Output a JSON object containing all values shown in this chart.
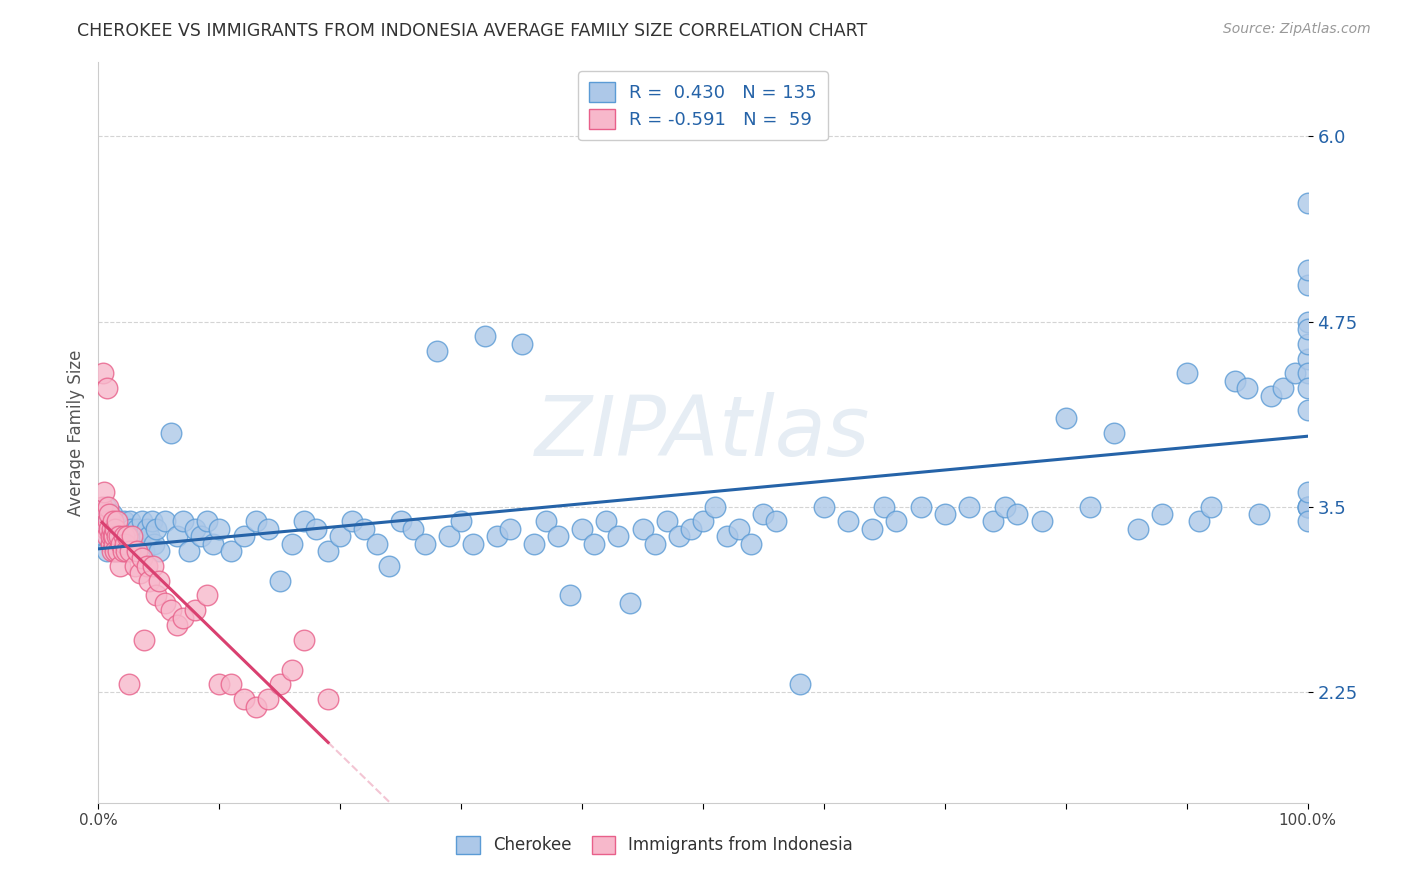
{
  "title": "CHEROKEE VS IMMIGRANTS FROM INDONESIA AVERAGE FAMILY SIZE CORRELATION CHART",
  "source_text": "Source: ZipAtlas.com",
  "ylabel": "Average Family Size",
  "watermark": "ZIPAtlas",
  "xlim": [
    0,
    1.0
  ],
  "ylim": [
    1.5,
    6.5
  ],
  "yticks": [
    2.25,
    3.5,
    4.75,
    6.0
  ],
  "xticks": [
    0.0,
    0.1,
    0.2,
    0.3,
    0.4,
    0.5,
    0.6,
    0.7,
    0.8,
    0.9,
    1.0
  ],
  "xtick_labels": [
    "0.0%",
    "",
    "",
    "",
    "",
    "",
    "",
    "",
    "",
    "",
    "100.0%"
  ],
  "blue_R": 0.43,
  "blue_N": 135,
  "pink_R": -0.591,
  "pink_N": 59,
  "blue_color": "#adc8e8",
  "blue_edge": "#5b9bd5",
  "pink_color": "#f7b8cb",
  "pink_edge": "#e8608a",
  "blue_line_color": "#2563a8",
  "pink_line_color": "#d94070",
  "background_color": "#ffffff",
  "grid_color": "#d0d0d0",
  "title_color": "#333333",
  "tick_label_color": "#2563a8",
  "blue_scatter_x": [
    0.005,
    0.006,
    0.007,
    0.008,
    0.009,
    0.01,
    0.011,
    0.012,
    0.013,
    0.014,
    0.015,
    0.016,
    0.017,
    0.018,
    0.019,
    0.02,
    0.021,
    0.022,
    0.023,
    0.024,
    0.025,
    0.026,
    0.027,
    0.028,
    0.03,
    0.032,
    0.034,
    0.036,
    0.038,
    0.04,
    0.042,
    0.044,
    0.046,
    0.048,
    0.05,
    0.055,
    0.06,
    0.065,
    0.07,
    0.075,
    0.08,
    0.085,
    0.09,
    0.095,
    0.1,
    0.11,
    0.12,
    0.13,
    0.14,
    0.15,
    0.16,
    0.17,
    0.18,
    0.19,
    0.2,
    0.21,
    0.22,
    0.23,
    0.24,
    0.25,
    0.26,
    0.27,
    0.28,
    0.29,
    0.3,
    0.31,
    0.32,
    0.33,
    0.34,
    0.35,
    0.36,
    0.37,
    0.38,
    0.39,
    0.4,
    0.41,
    0.42,
    0.43,
    0.44,
    0.45,
    0.46,
    0.47,
    0.48,
    0.49,
    0.5,
    0.51,
    0.52,
    0.53,
    0.54,
    0.55,
    0.56,
    0.58,
    0.6,
    0.62,
    0.64,
    0.65,
    0.66,
    0.68,
    0.7,
    0.72,
    0.74,
    0.75,
    0.76,
    0.78,
    0.8,
    0.82,
    0.84,
    0.86,
    0.88,
    0.9,
    0.91,
    0.92,
    0.94,
    0.95,
    0.96,
    0.97,
    0.98,
    0.99,
    1.0,
    1.0,
    1.0,
    1.0,
    1.0,
    1.0,
    1.0,
    1.0,
    1.0,
    1.0,
    1.0,
    1.0,
    1.0,
    1.0,
    1.0
  ],
  "blue_scatter_y": [
    3.3,
    3.5,
    3.2,
    3.4,
    3.35,
    3.25,
    3.45,
    3.3,
    3.35,
    3.2,
    3.3,
    3.4,
    3.25,
    3.35,
    3.2,
    3.3,
    3.4,
    3.35,
    3.25,
    3.3,
    3.2,
    3.4,
    3.35,
    3.25,
    3.3,
    3.35,
    3.25,
    3.4,
    3.2,
    3.35,
    3.3,
    3.4,
    3.25,
    3.35,
    3.2,
    3.4,
    4.0,
    3.3,
    3.4,
    3.2,
    3.35,
    3.3,
    3.4,
    3.25,
    3.35,
    3.2,
    3.3,
    3.4,
    3.35,
    3.0,
    3.25,
    3.4,
    3.35,
    3.2,
    3.3,
    3.4,
    3.35,
    3.25,
    3.1,
    3.4,
    3.35,
    3.25,
    4.55,
    3.3,
    3.4,
    3.25,
    4.65,
    3.3,
    3.35,
    4.6,
    3.25,
    3.4,
    3.3,
    2.9,
    3.35,
    3.25,
    3.4,
    3.3,
    2.85,
    3.35,
    3.25,
    3.4,
    3.3,
    3.35,
    3.4,
    3.5,
    3.3,
    3.35,
    3.25,
    3.45,
    3.4,
    2.3,
    3.5,
    3.4,
    3.35,
    3.5,
    3.4,
    3.5,
    3.45,
    3.5,
    3.4,
    3.5,
    3.45,
    3.4,
    4.1,
    3.5,
    4.0,
    3.35,
    3.45,
    4.4,
    3.4,
    3.5,
    4.35,
    4.3,
    3.45,
    4.25,
    4.3,
    4.4,
    3.5,
    4.75,
    5.55,
    3.5,
    4.15,
    5.0,
    5.1,
    4.5,
    4.4,
    3.5,
    3.6,
    4.6,
    4.7,
    3.4,
    4.3
  ],
  "pink_scatter_x": [
    0.003,
    0.004,
    0.005,
    0.006,
    0.007,
    0.007,
    0.008,
    0.008,
    0.009,
    0.009,
    0.01,
    0.01,
    0.011,
    0.011,
    0.012,
    0.012,
    0.013,
    0.013,
    0.014,
    0.014,
    0.015,
    0.015,
    0.016,
    0.017,
    0.018,
    0.019,
    0.02,
    0.021,
    0.022,
    0.023,
    0.024,
    0.025,
    0.026,
    0.028,
    0.03,
    0.032,
    0.034,
    0.036,
    0.038,
    0.04,
    0.042,
    0.045,
    0.048,
    0.05,
    0.055,
    0.06,
    0.065,
    0.07,
    0.08,
    0.09,
    0.1,
    0.11,
    0.12,
    0.13,
    0.14,
    0.15,
    0.16,
    0.17,
    0.19
  ],
  "pink_scatter_y": [
    3.5,
    4.4,
    3.6,
    3.35,
    3.3,
    4.3,
    3.4,
    3.5,
    3.35,
    3.45,
    3.25,
    3.3,
    3.35,
    3.2,
    3.3,
    3.4,
    3.25,
    3.3,
    3.35,
    3.2,
    3.3,
    3.4,
    3.2,
    3.3,
    3.1,
    3.25,
    3.2,
    3.3,
    3.25,
    3.2,
    3.3,
    2.3,
    3.2,
    3.3,
    3.1,
    3.2,
    3.05,
    3.15,
    2.6,
    3.1,
    3.0,
    3.1,
    2.9,
    3.0,
    2.85,
    2.8,
    2.7,
    2.75,
    2.8,
    2.9,
    2.3,
    2.3,
    2.2,
    2.15,
    2.2,
    2.3,
    2.4,
    2.6,
    2.2
  ]
}
